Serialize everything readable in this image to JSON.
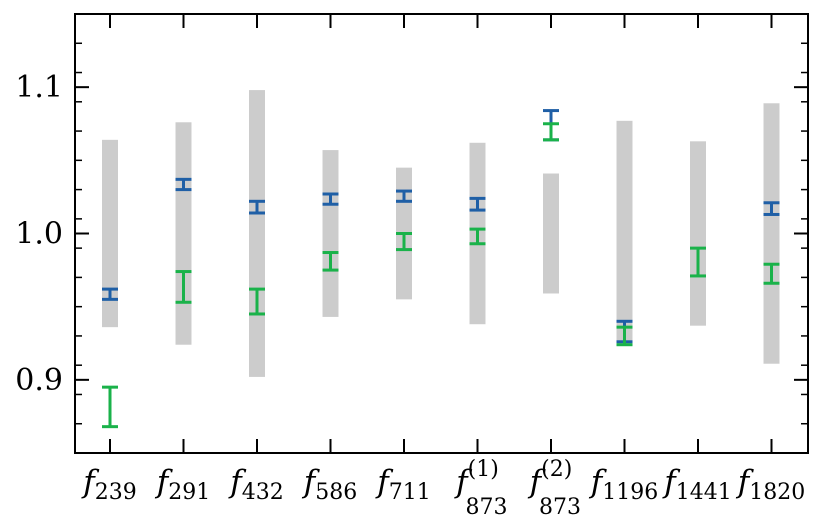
{
  "chart_data": {
    "type": "errorbar",
    "title": "",
    "xlabel": "",
    "ylabel": "",
    "ylim": [
      0.85,
      1.15
    ],
    "y_ticks": [
      {
        "value": 0.9,
        "label": "0.9"
      },
      {
        "value": 1.0,
        "label": "1.0"
      },
      {
        "value": 1.1,
        "label": "1.1"
      }
    ],
    "grid": false,
    "categories": [
      {
        "base": "f",
        "sub": "239",
        "sup": ""
      },
      {
        "base": "f",
        "sub": "291",
        "sup": ""
      },
      {
        "base": "f",
        "sub": "432",
        "sup": ""
      },
      {
        "base": "f",
        "sub": "586",
        "sup": ""
      },
      {
        "base": "f",
        "sub": "711",
        "sup": ""
      },
      {
        "base": "f",
        "sub": "873",
        "sup": "(1)"
      },
      {
        "base": "f",
        "sub": "873",
        "sup": "(2)"
      },
      {
        "base": "f",
        "sub": "1196",
        "sup": ""
      },
      {
        "base": "f",
        "sub": "1441",
        "sup": ""
      },
      {
        "base": "f",
        "sub": "1820",
        "sup": ""
      }
    ],
    "band": {
      "color": "#cccccc",
      "low": [
        0.936,
        0.924,
        0.902,
        0.943,
        0.955,
        0.938,
        0.959,
        0.925,
        0.937,
        0.911
      ],
      "high": [
        1.064,
        1.076,
        1.098,
        1.057,
        1.045,
        1.062,
        1.041,
        1.077,
        1.063,
        1.089
      ]
    },
    "series": [
      {
        "color": "#1f5fa6",
        "low": [
          0.955,
          1.03,
          1.014,
          1.02,
          1.022,
          1.016,
          1.064,
          0.926,
          null,
          1.013
        ],
        "high": [
          0.962,
          1.037,
          1.022,
          1.027,
          1.029,
          1.024,
          1.084,
          0.94,
          null,
          1.021
        ]
      },
      {
        "color": "#1ab24a",
        "low": [
          0.868,
          0.953,
          0.945,
          0.975,
          0.989,
          0.993,
          1.064,
          0.924,
          0.971,
          0.966
        ],
        "high": [
          0.895,
          0.974,
          0.962,
          0.987,
          1.0,
          1.003,
          1.075,
          0.936,
          0.99,
          0.979
        ]
      }
    ]
  }
}
